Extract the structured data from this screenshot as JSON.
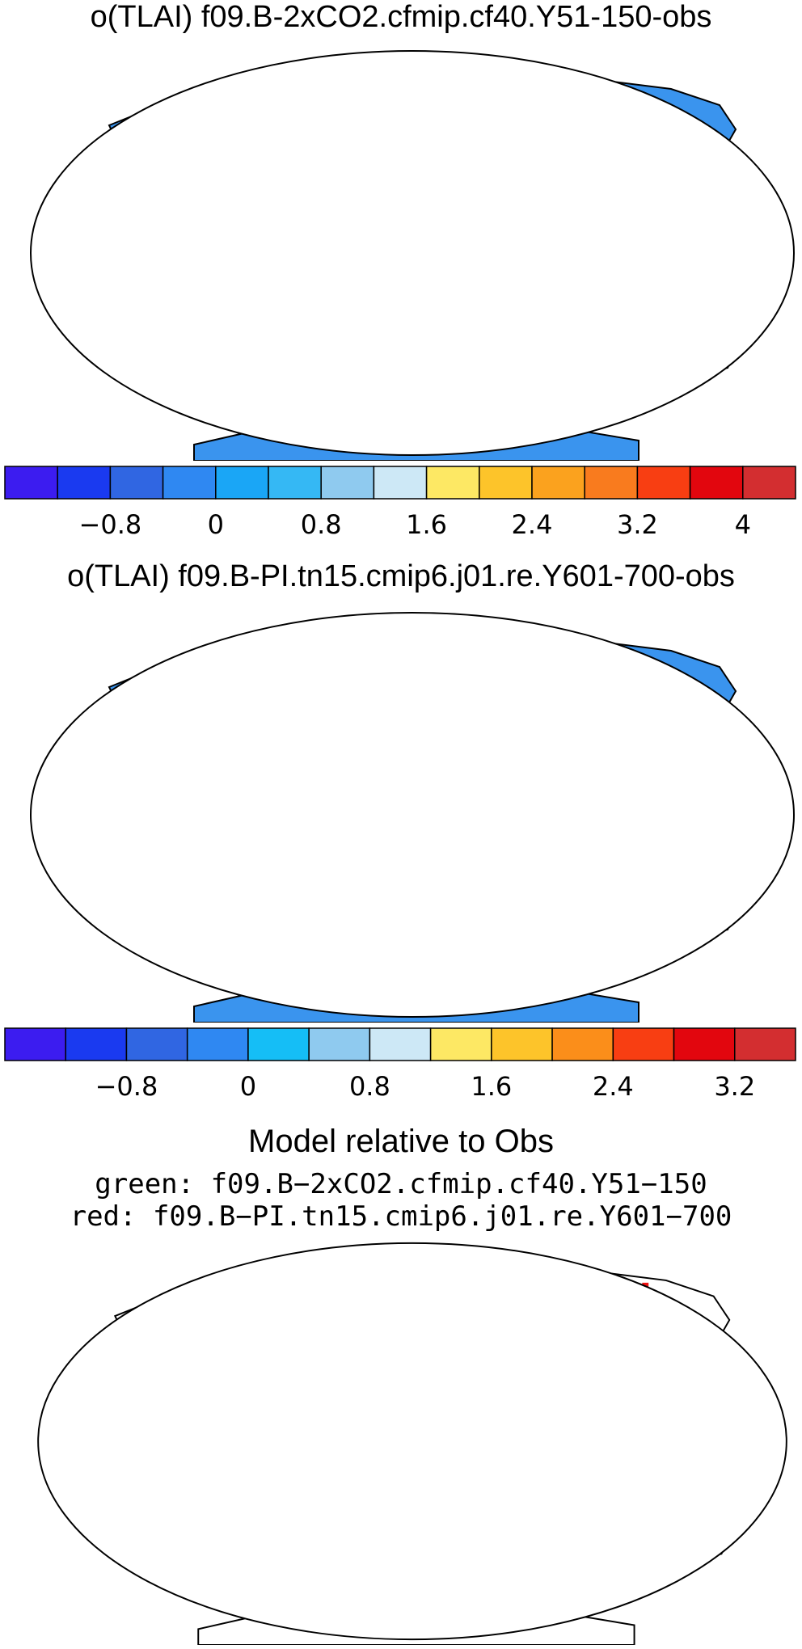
{
  "panels": [
    {
      "title": "o(TLAI) f09.B-2xCO2.cfmip.cf40.Y51-150-obs",
      "colorbar": {
        "colors": [
          "#3c1cf0",
          "#1a3af0",
          "#3066e2",
          "#2f88f2",
          "#1aa6f6",
          "#35b8f4",
          "#8fcaef",
          "#cde8f6",
          "#fde864",
          "#fdc42a",
          "#fba21e",
          "#f97b1e",
          "#f83e12",
          "#e2060e",
          "#d32e30"
        ],
        "ticks": [
          "−0.8",
          "0",
          "0.8",
          "1.6",
          "2.4",
          "3.2",
          "4"
        ]
      }
    },
    {
      "title": "o(TLAI) f09.B-PI.tn15.cmip6.j01.re.Y601-700-obs",
      "colorbar": {
        "colors": [
          "#3c1cf0",
          "#1a3af0",
          "#3066e2",
          "#2f88f2",
          "#15bef6",
          "#8fcaef",
          "#cde8f6",
          "#fde864",
          "#fdc42a",
          "#fb8e1a",
          "#f83e12",
          "#e2060e",
          "#d32e30"
        ],
        "ticks": [
          "−0.8",
          "0",
          "0.8",
          "1.6",
          "2.4",
          "3.2"
        ]
      }
    }
  ],
  "relative": {
    "title": "Model relative to Obs",
    "line1": "green: f09.B−2xCO2.cfmip.cf40.Y51−150",
    "line2": "red: f09.B−PI.tn15.cmip6.j01.re.Y601−700",
    "colors": {
      "green": "#22dd22",
      "red": "#ee1111"
    }
  },
  "map_colors": {
    "land": "#3a94ee",
    "ocean": "#ffffff",
    "outline": "#000000"
  }
}
